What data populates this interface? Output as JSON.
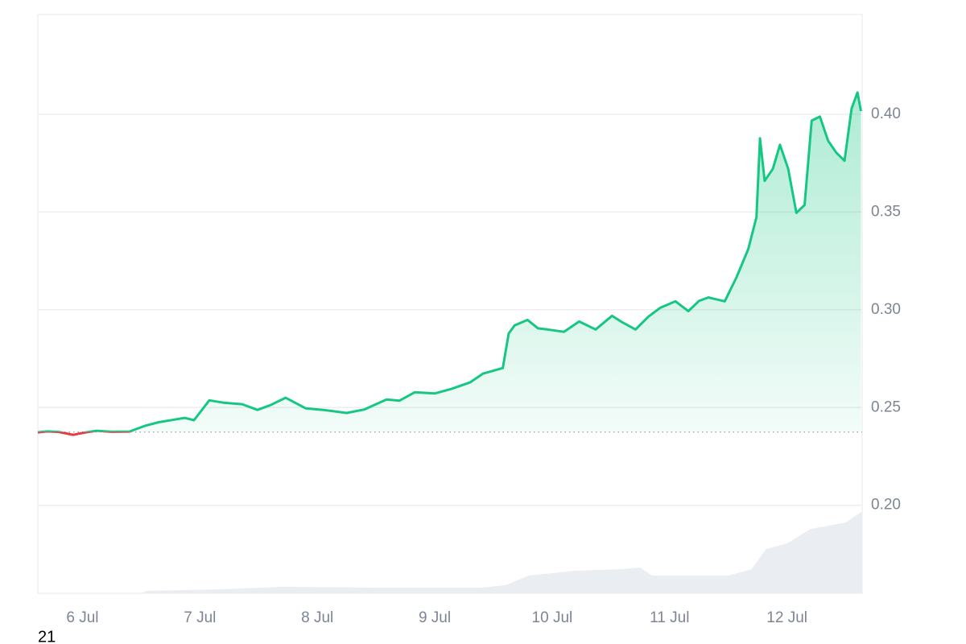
{
  "chart_data": {
    "type": "line",
    "x": [
      5.62,
      5.7,
      5.8,
      5.92,
      6.02,
      6.12,
      6.25,
      6.4,
      6.53,
      6.65,
      6.78,
      6.87,
      6.95,
      7.08,
      7.2,
      7.36,
      7.49,
      7.6,
      7.73,
      7.9,
      8.05,
      8.25,
      8.4,
      8.59,
      8.7,
      8.83,
      9.0,
      9.14,
      9.3,
      9.41,
      9.58,
      9.63,
      9.68,
      9.79,
      9.88,
      9.96,
      10.1,
      10.23,
      10.37,
      10.51,
      10.6,
      10.71,
      10.82,
      10.92,
      11.05,
      11.16,
      11.25,
      11.33,
      11.47,
      11.57,
      11.67,
      11.74,
      11.77,
      11.81,
      11.88,
      11.94,
      12.01,
      12.08,
      12.15,
      12.21,
      12.28,
      12.35,
      12.42,
      12.49,
      12.55,
      12.6,
      12.63
    ],
    "values": [
      0.2373,
      0.2378,
      0.2375,
      0.236,
      0.2372,
      0.2381,
      0.2376,
      0.2377,
      0.2406,
      0.2425,
      0.2438,
      0.2447,
      0.2435,
      0.2537,
      0.2525,
      0.2517,
      0.2488,
      0.2512,
      0.255,
      0.2496,
      0.2488,
      0.2472,
      0.249,
      0.2541,
      0.2535,
      0.2578,
      0.2572,
      0.2595,
      0.2628,
      0.2673,
      0.2702,
      0.2878,
      0.292,
      0.2948,
      0.2905,
      0.2899,
      0.2887,
      0.294,
      0.2899,
      0.2969,
      0.2935,
      0.2899,
      0.2965,
      0.301,
      0.3043,
      0.2993,
      0.3045,
      0.3063,
      0.3043,
      0.3166,
      0.331,
      0.3474,
      0.3877,
      0.3659,
      0.3721,
      0.3844,
      0.3721,
      0.3495,
      0.3536,
      0.3967,
      0.3988,
      0.3864,
      0.3803,
      0.3762,
      0.4029,
      0.4111,
      0.4016
    ],
    "color": "#16c784",
    "color_down": "#ea3943",
    "baseline": 0.2375,
    "xlim": [
      5.62,
      12.64
    ],
    "ylim": [
      0.155,
      0.451
    ],
    "xticks": [
      {
        "value": 6,
        "label": "6 Jul"
      },
      {
        "value": 7,
        "label": "7 Jul"
      },
      {
        "value": 8,
        "label": "8 Jul"
      },
      {
        "value": 9,
        "label": "9 Jul"
      },
      {
        "value": 10,
        "label": "10 Jul"
      },
      {
        "value": 11,
        "label": "11 Jul"
      },
      {
        "value": 12,
        "label": "12 Jul"
      }
    ],
    "yticks": [
      {
        "value": 0.2,
        "label": "0.20"
      },
      0.25,
      {
        "value": 0.3,
        "label": "0.30"
      },
      0.35,
      {
        "value": 0.4,
        "label": "0.40"
      }
    ],
    "grid": true,
    "volume": {
      "x": [
        5.62,
        6.5,
        6.55,
        7.2,
        7.7,
        8.5,
        9.4,
        9.6,
        9.8,
        10.2,
        10.6,
        10.75,
        10.85,
        11.5,
        11.7,
        11.82,
        12.0,
        12.2,
        12.5,
        12.6,
        12.64
      ],
      "values": [
        0,
        0,
        3,
        5,
        8,
        7,
        7,
        10,
        22,
        28,
        30,
        32,
        22,
        22,
        30,
        55,
        62,
        80,
        88,
        98,
        102
      ],
      "ylim": [
        0,
        720
      ],
      "color": "#eaedf1"
    },
    "footnote": "21"
  }
}
